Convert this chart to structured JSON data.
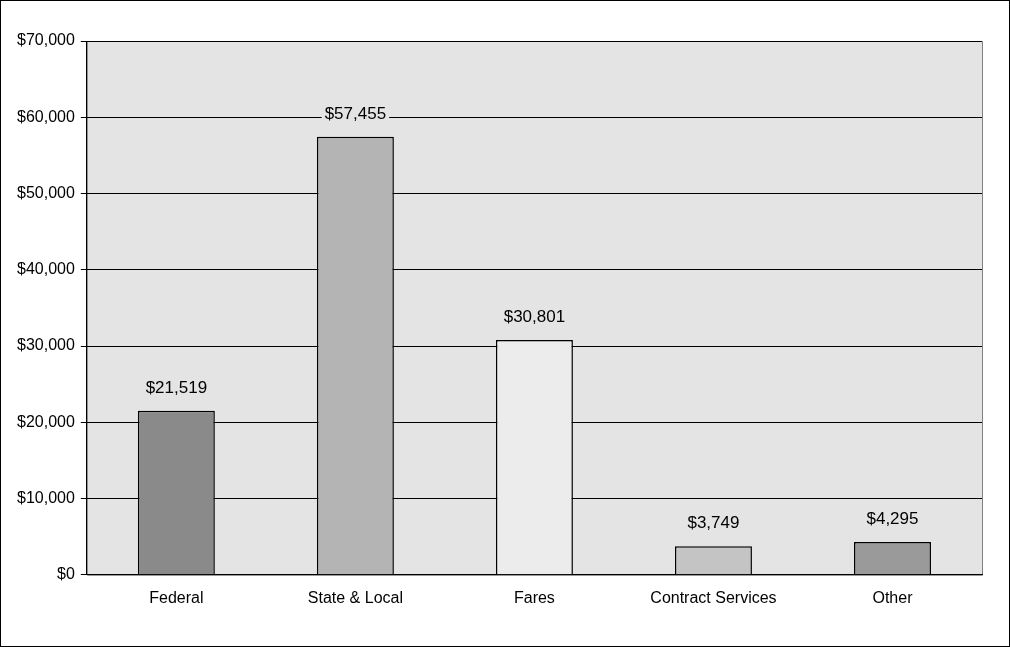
{
  "chart_data": {
    "type": "bar",
    "categories": [
      "Federal",
      "State & Local",
      "Fares",
      "Contract Services",
      "Other"
    ],
    "values": [
      21519,
      57455,
      30801,
      3749,
      4295
    ],
    "colors": [
      "#8a8a8a",
      "#b4b4b4",
      "#ececec",
      "#c4c4c4",
      "#9a9a9a"
    ],
    "value_labels": [
      "$21,519",
      "$57,455",
      "$30,801",
      "$3,749",
      "$4,295"
    ],
    "ylim": [
      0,
      70000
    ],
    "yticks": [
      {
        "value": 0,
        "label": "$0"
      },
      {
        "value": 10000,
        "label": "$10,000"
      },
      {
        "value": 20000,
        "label": "$20,000"
      },
      {
        "value": 30000,
        "label": "$30,000"
      },
      {
        "value": 40000,
        "label": "$40,000"
      },
      {
        "value": 50000,
        "label": "$50,000"
      },
      {
        "value": 60000,
        "label": "$60,000"
      },
      {
        "value": 70000,
        "label": "$70,000"
      }
    ],
    "grid": "y",
    "legend": false
  }
}
